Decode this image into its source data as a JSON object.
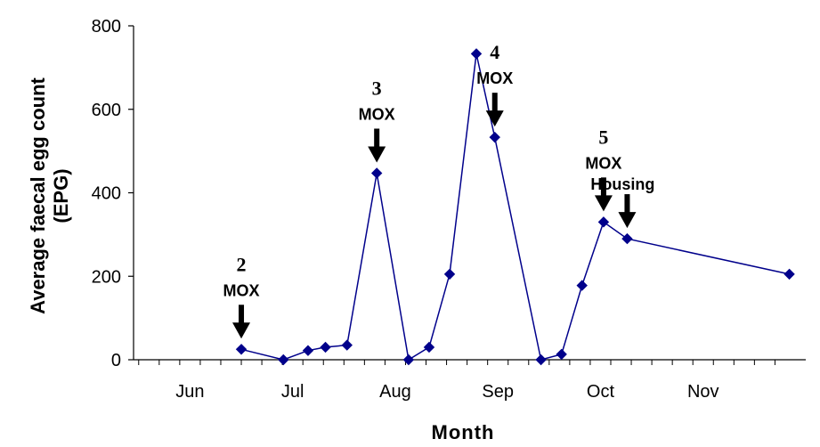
{
  "chart_data": {
    "type": "line",
    "title": "",
    "xlabel": "Month",
    "ylabel_line1": "Average faecal egg count",
    "ylabel_line2": "(EPG)",
    "ylim": [
      0,
      800
    ],
    "yticks": [
      "0",
      "200",
      "400",
      "600",
      "800"
    ],
    "months": [
      "Jun",
      "Jul",
      "Aug",
      "Sep",
      "Oct",
      "Nov"
    ],
    "month_centers": [
      0,
      1,
      2,
      3,
      4,
      5
    ],
    "series_color": "#00008B",
    "series": [
      {
        "x": [
          0.5,
          0.91,
          1.15,
          1.32,
          1.53,
          1.82,
          2.13,
          2.33,
          2.53,
          2.79,
          2.97,
          3.42,
          3.62,
          3.82,
          4.03,
          4.26,
          5.84
        ],
        "values": [
          25,
          0,
          22,
          30,
          35,
          447,
          0,
          30,
          205,
          733,
          533,
          0,
          13,
          178,
          330,
          290,
          205
        ]
      }
    ],
    "annotations": [
      {
        "number": "2",
        "label": "MOX",
        "x": 0.5,
        "value": 25
      },
      {
        "number": "3",
        "label": "MOX",
        "x": 1.82,
        "value": 447
      },
      {
        "number": "4",
        "label": "MOX",
        "x": 2.97,
        "value": 533
      },
      {
        "number": "5",
        "label": "MOX",
        "x": 4.03,
        "value": 330
      },
      {
        "number": "",
        "label": "Housing",
        "x": 4.26,
        "value": 290
      }
    ]
  }
}
